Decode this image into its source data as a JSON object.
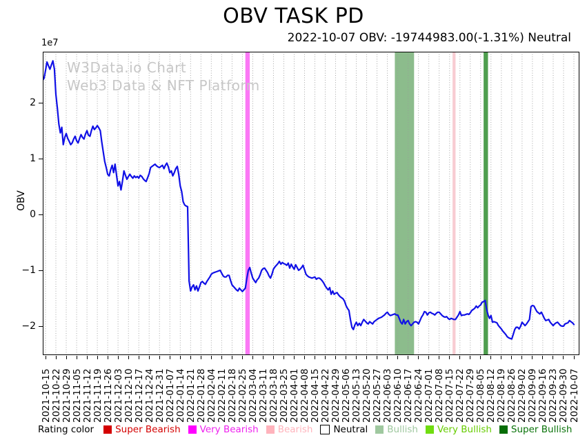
{
  "header": {
    "title": "OBV TASK PD",
    "subtitle": "2022-10-07 OBV: -19744983.00(-1.31%) Neutral"
  },
  "watermark": {
    "line1": "W3Data.io Chart",
    "line2": "Web3 Data & NFT Platform",
    "color": "#c7c7c7"
  },
  "axes": {
    "y_label": "OBV",
    "y_offset_label": "1e7",
    "y_ticks": [
      {
        "label": "2",
        "value": 2
      },
      {
        "label": "1",
        "value": 1
      },
      {
        "label": "0",
        "value": 0
      },
      {
        "label": "−1",
        "value": -1
      },
      {
        "label": "−2",
        "value": -2
      }
    ]
  },
  "legend": {
    "title": "Rating color",
    "items": [
      {
        "label": "Super Bearish",
        "color": "#d40000",
        "text_color": "#d40000",
        "border": false
      },
      {
        "label": "Very Bearish",
        "color": "#ff00ff",
        "text_color": "#ee22ee",
        "border": false
      },
      {
        "label": "Bearish",
        "color": "#ffb3bc",
        "text_color": "#ffb3bc",
        "border": false
      },
      {
        "label": "Neutral",
        "color": "#ffffff",
        "text_color": "#000000",
        "border": true
      },
      {
        "label": "Bullish",
        "color": "#9fc89f",
        "text_color": "#9fc89f",
        "border": false
      },
      {
        "label": "Very Bullish",
        "color": "#70dd10",
        "text_color": "#66cc00",
        "border": false
      },
      {
        "label": "Super Bullish",
        "color": "#076d07",
        "text_color": "#0a730a",
        "border": false
      }
    ]
  },
  "chart_data": {
    "type": "line",
    "title": "OBV TASK PD",
    "subtitle": "2022-10-07 OBV: -19744983.00(-1.31%) Neutral",
    "ylabel": "OBV",
    "y_scale_label": "1e7",
    "value_unit_multiplier": 10000000,
    "ylim": [
      -2.52,
      2.91
    ],
    "grid": "vertical-dotted",
    "line_color": "#1010e6",
    "last_point": {
      "date": "2022-10-07",
      "obv": -19744983.0,
      "change_pct": -1.31,
      "rating": "Neutral"
    },
    "x_tick_labels": [
      "2021-10-15",
      "2021-10-22",
      "2021-10-29",
      "2021-11-05",
      "2021-11-12",
      "2021-11-19",
      "2021-11-26",
      "2021-12-03",
      "2021-12-10",
      "2021-12-17",
      "2021-12-24",
      "2021-12-31",
      "2022-01-07",
      "2022-01-14",
      "2022-01-21",
      "2022-01-28",
      "2022-02-04",
      "2022-02-11",
      "2022-02-18",
      "2022-02-25",
      "2022-03-04",
      "2022-03-11",
      "2022-03-18",
      "2022-03-25",
      "2022-04-01",
      "2022-04-08",
      "2022-04-15",
      "2022-04-22",
      "2022-04-29",
      "2022-05-06",
      "2022-05-13",
      "2022-05-20",
      "2022-05-27",
      "2022-06-03",
      "2022-06-10",
      "2022-06-17",
      "2022-06-24",
      "2022-07-01",
      "2022-07-08",
      "2022-07-15",
      "2022-07-22",
      "2022-07-29",
      "2022-08-05",
      "2022-08-12",
      "2022-08-19",
      "2022-08-26",
      "2022-09-02",
      "2022-09-09",
      "2022-09-16",
      "2022-09-23",
      "2022-09-30",
      "2022-10-07"
    ],
    "rating_bands": [
      {
        "rating": "Very Bearish",
        "start": "2022-02-27",
        "end": "2022-03-02",
        "color": "#fb78f5"
      },
      {
        "rating": "Bullish",
        "start": "2022-06-08",
        "end": "2022-06-21",
        "color": "#8cbc8c"
      },
      {
        "rating": "Bearish",
        "start": "2022-07-17",
        "end": "2022-07-19",
        "color": "#f8ccd2"
      },
      {
        "rating": "Super Bullish",
        "start": "2022-08-07",
        "end": "2022-08-10",
        "color": "#4f9e4f"
      }
    ],
    "series": [
      {
        "name": "OBV",
        "start_date": "2021-10-13",
        "interval_days": 1,
        "values_in_1e7": [
          2.4,
          2.44,
          2.58,
          2.73,
          2.66,
          2.6,
          2.68,
          2.75,
          2.6,
          2.15,
          1.9,
          1.62,
          1.46,
          1.56,
          1.25,
          1.38,
          1.45,
          1.36,
          1.31,
          1.25,
          1.28,
          1.35,
          1.4,
          1.32,
          1.28,
          1.36,
          1.43,
          1.38,
          1.35,
          1.44,
          1.5,
          1.42,
          1.4,
          1.5,
          1.58,
          1.52,
          1.55,
          1.59,
          1.55,
          1.5,
          1.3,
          1.12,
          0.95,
          0.84,
          0.72,
          0.69,
          0.8,
          0.88,
          0.75,
          0.9,
          0.7,
          0.51,
          0.59,
          0.44,
          0.6,
          0.78,
          0.7,
          0.63,
          0.68,
          0.72,
          0.68,
          0.65,
          0.69,
          0.66,
          0.68,
          0.65,
          0.7,
          0.68,
          0.64,
          0.61,
          0.59,
          0.66,
          0.73,
          0.84,
          0.86,
          0.88,
          0.9,
          0.87,
          0.85,
          0.84,
          0.86,
          0.88,
          0.82,
          0.88,
          0.92,
          0.85,
          0.75,
          0.78,
          0.69,
          0.75,
          0.82,
          0.86,
          0.72,
          0.51,
          0.41,
          0.23,
          0.17,
          0.15,
          0.14,
          -1.19,
          -1.37,
          -1.3,
          -1.26,
          -1.35,
          -1.28,
          -1.37,
          -1.3,
          -1.22,
          -1.2,
          -1.23,
          -1.25,
          -1.2,
          -1.16,
          -1.12,
          -1.07,
          -1.05,
          -1.04,
          -1.03,
          -1.02,
          -1.01,
          -1.0,
          -1.05,
          -1.1,
          -1.12,
          -1.12,
          -1.09,
          -1.09,
          -1.18,
          -1.26,
          -1.29,
          -1.32,
          -1.35,
          -1.37,
          -1.32,
          -1.35,
          -1.38,
          -1.35,
          -1.32,
          -1.15,
          -1.0,
          -0.95,
          -1.05,
          -1.14,
          -1.18,
          -1.22,
          -1.17,
          -1.14,
          -1.08,
          -1.0,
          -0.97,
          -0.96,
          -1.0,
          -1.04,
          -1.1,
          -1.14,
          -1.07,
          -0.98,
          -0.94,
          -0.91,
          -0.88,
          -0.84,
          -0.89,
          -0.86,
          -0.88,
          -0.89,
          -0.91,
          -0.87,
          -0.96,
          -0.89,
          -0.94,
          -0.98,
          -0.9,
          -0.95,
          -1.0,
          -0.98,
          -0.95,
          -0.91,
          -0.99,
          -1.07,
          -1.1,
          -1.12,
          -1.13,
          -1.14,
          -1.13,
          -1.12,
          -1.16,
          -1.14,
          -1.14,
          -1.16,
          -1.19,
          -1.23,
          -1.28,
          -1.32,
          -1.35,
          -1.31,
          -1.43,
          -1.37,
          -1.43,
          -1.41,
          -1.4,
          -1.44,
          -1.47,
          -1.49,
          -1.51,
          -1.55,
          -1.63,
          -1.68,
          -1.72,
          -1.88,
          -2.02,
          -2.06,
          -1.98,
          -1.93,
          -1.99,
          -1.95,
          -1.99,
          -1.93,
          -1.88,
          -1.91,
          -1.94,
          -1.96,
          -1.92,
          -1.94,
          -1.96,
          -1.92,
          -1.9,
          -1.88,
          -1.86,
          -1.85,
          -1.84,
          -1.82,
          -1.8,
          -1.77,
          -1.75,
          -1.79,
          -1.81,
          -1.8,
          -1.79,
          -1.78,
          -1.8,
          -1.8,
          -1.86,
          -1.93,
          -1.96,
          -1.88,
          -1.96,
          -1.92,
          -1.9,
          -1.96,
          -1.99,
          -1.96,
          -1.93,
          -1.92,
          -1.93,
          -1.96,
          -1.9,
          -1.84,
          -1.8,
          -1.74,
          -1.75,
          -1.8,
          -1.76,
          -1.75,
          -1.77,
          -1.78,
          -1.8,
          -1.77,
          -1.75,
          -1.75,
          -1.78,
          -1.81,
          -1.83,
          -1.84,
          -1.83,
          -1.86,
          -1.88,
          -1.86,
          -1.87,
          -1.88,
          -1.88,
          -1.84,
          -1.8,
          -1.74,
          -1.81,
          -1.8,
          -1.8,
          -1.79,
          -1.78,
          -1.79,
          -1.76,
          -1.72,
          -1.7,
          -1.68,
          -1.64,
          -1.67,
          -1.64,
          -1.62,
          -1.57,
          -1.56,
          -1.54,
          -1.69,
          -1.8,
          -1.86,
          -1.81,
          -1.93,
          -1.92,
          -1.93,
          -1.94,
          -1.99,
          -2.02,
          -2.05,
          -2.09,
          -2.12,
          -2.15,
          -2.19,
          -2.21,
          -2.22,
          -2.23,
          -2.15,
          -2.06,
          -2.02,
          -2.02,
          -2.05,
          -2.0,
          -1.93,
          -1.96,
          -1.99,
          -1.96,
          -1.92,
          -1.88,
          -1.65,
          -1.63,
          -1.64,
          -1.69,
          -1.74,
          -1.76,
          -1.78,
          -1.75,
          -1.8,
          -1.86,
          -1.9,
          -1.89,
          -1.88,
          -1.93,
          -1.96,
          -1.99,
          -1.96,
          -1.94,
          -1.93,
          -1.96,
          -1.99,
          -2.0,
          -2.0,
          -1.96,
          -1.95,
          -1.94,
          -1.9,
          -1.92,
          -1.94,
          -1.97
        ]
      }
    ]
  }
}
